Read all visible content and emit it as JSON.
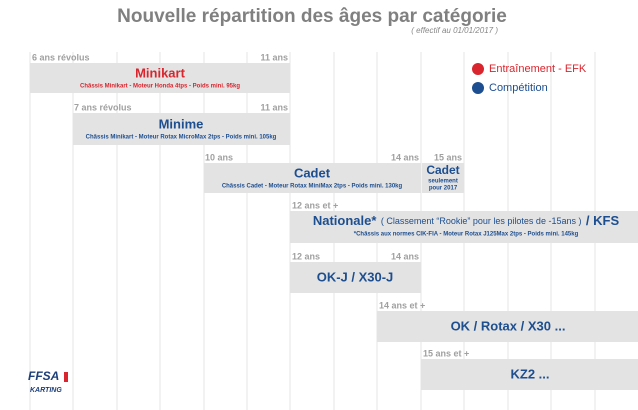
{
  "header": {
    "title": "Nouvelle répartition des âges par catégorie",
    "subtitle": "( effectif au 01/01/2017 )"
  },
  "legend": [
    {
      "label": "Entraînement - EFK"
    },
    {
      "label": "Compétition"
    }
  ],
  "categories": [
    {
      "name": "Minikart",
      "details": "Châssis Minikart - Moteur Honda 4tps - Poids mini. 95kg",
      "start": "6 ans révolus",
      "end": "11 ans"
    },
    {
      "name": "Minime",
      "details": "Châssis Minikart - Moteur Rotax MicroMax 2tps - Poids mini. 105kg",
      "start": "7 ans révolus",
      "end": "11 ans"
    },
    {
      "name": "Cadet",
      "details": "Châssis Cadet - Moteur Rotax MiniMax 2tps - Poids mini. 130kg",
      "start": "10 ans",
      "end": "14 ans"
    },
    {
      "name": "Nationale*",
      "note": "( Classement “Rookie” pour les pilotes de -15ans )",
      "suffix": "/ KFS",
      "details": "*Châssis aux normes CIK-FIA - Moteur Rotax J125Max 2tps - Poids mini. 145kg",
      "start": "12 ans et +"
    },
    {
      "name": "OK-J / X30-J",
      "start": "12 ans",
      "end": "14 ans"
    },
    {
      "name": "OK / Rotax / X30 ...",
      "start": "14 ans et +"
    },
    {
      "name": "KZ2 ...",
      "start": "15 ans et +"
    }
  ],
  "cadet_extra": {
    "start": "15 ans",
    "title": "Cadet",
    "lines": [
      "seulement",
      "pour 2017"
    ]
  },
  "logo": {
    "top": "FFSA",
    "bottom": "KARTING"
  }
}
